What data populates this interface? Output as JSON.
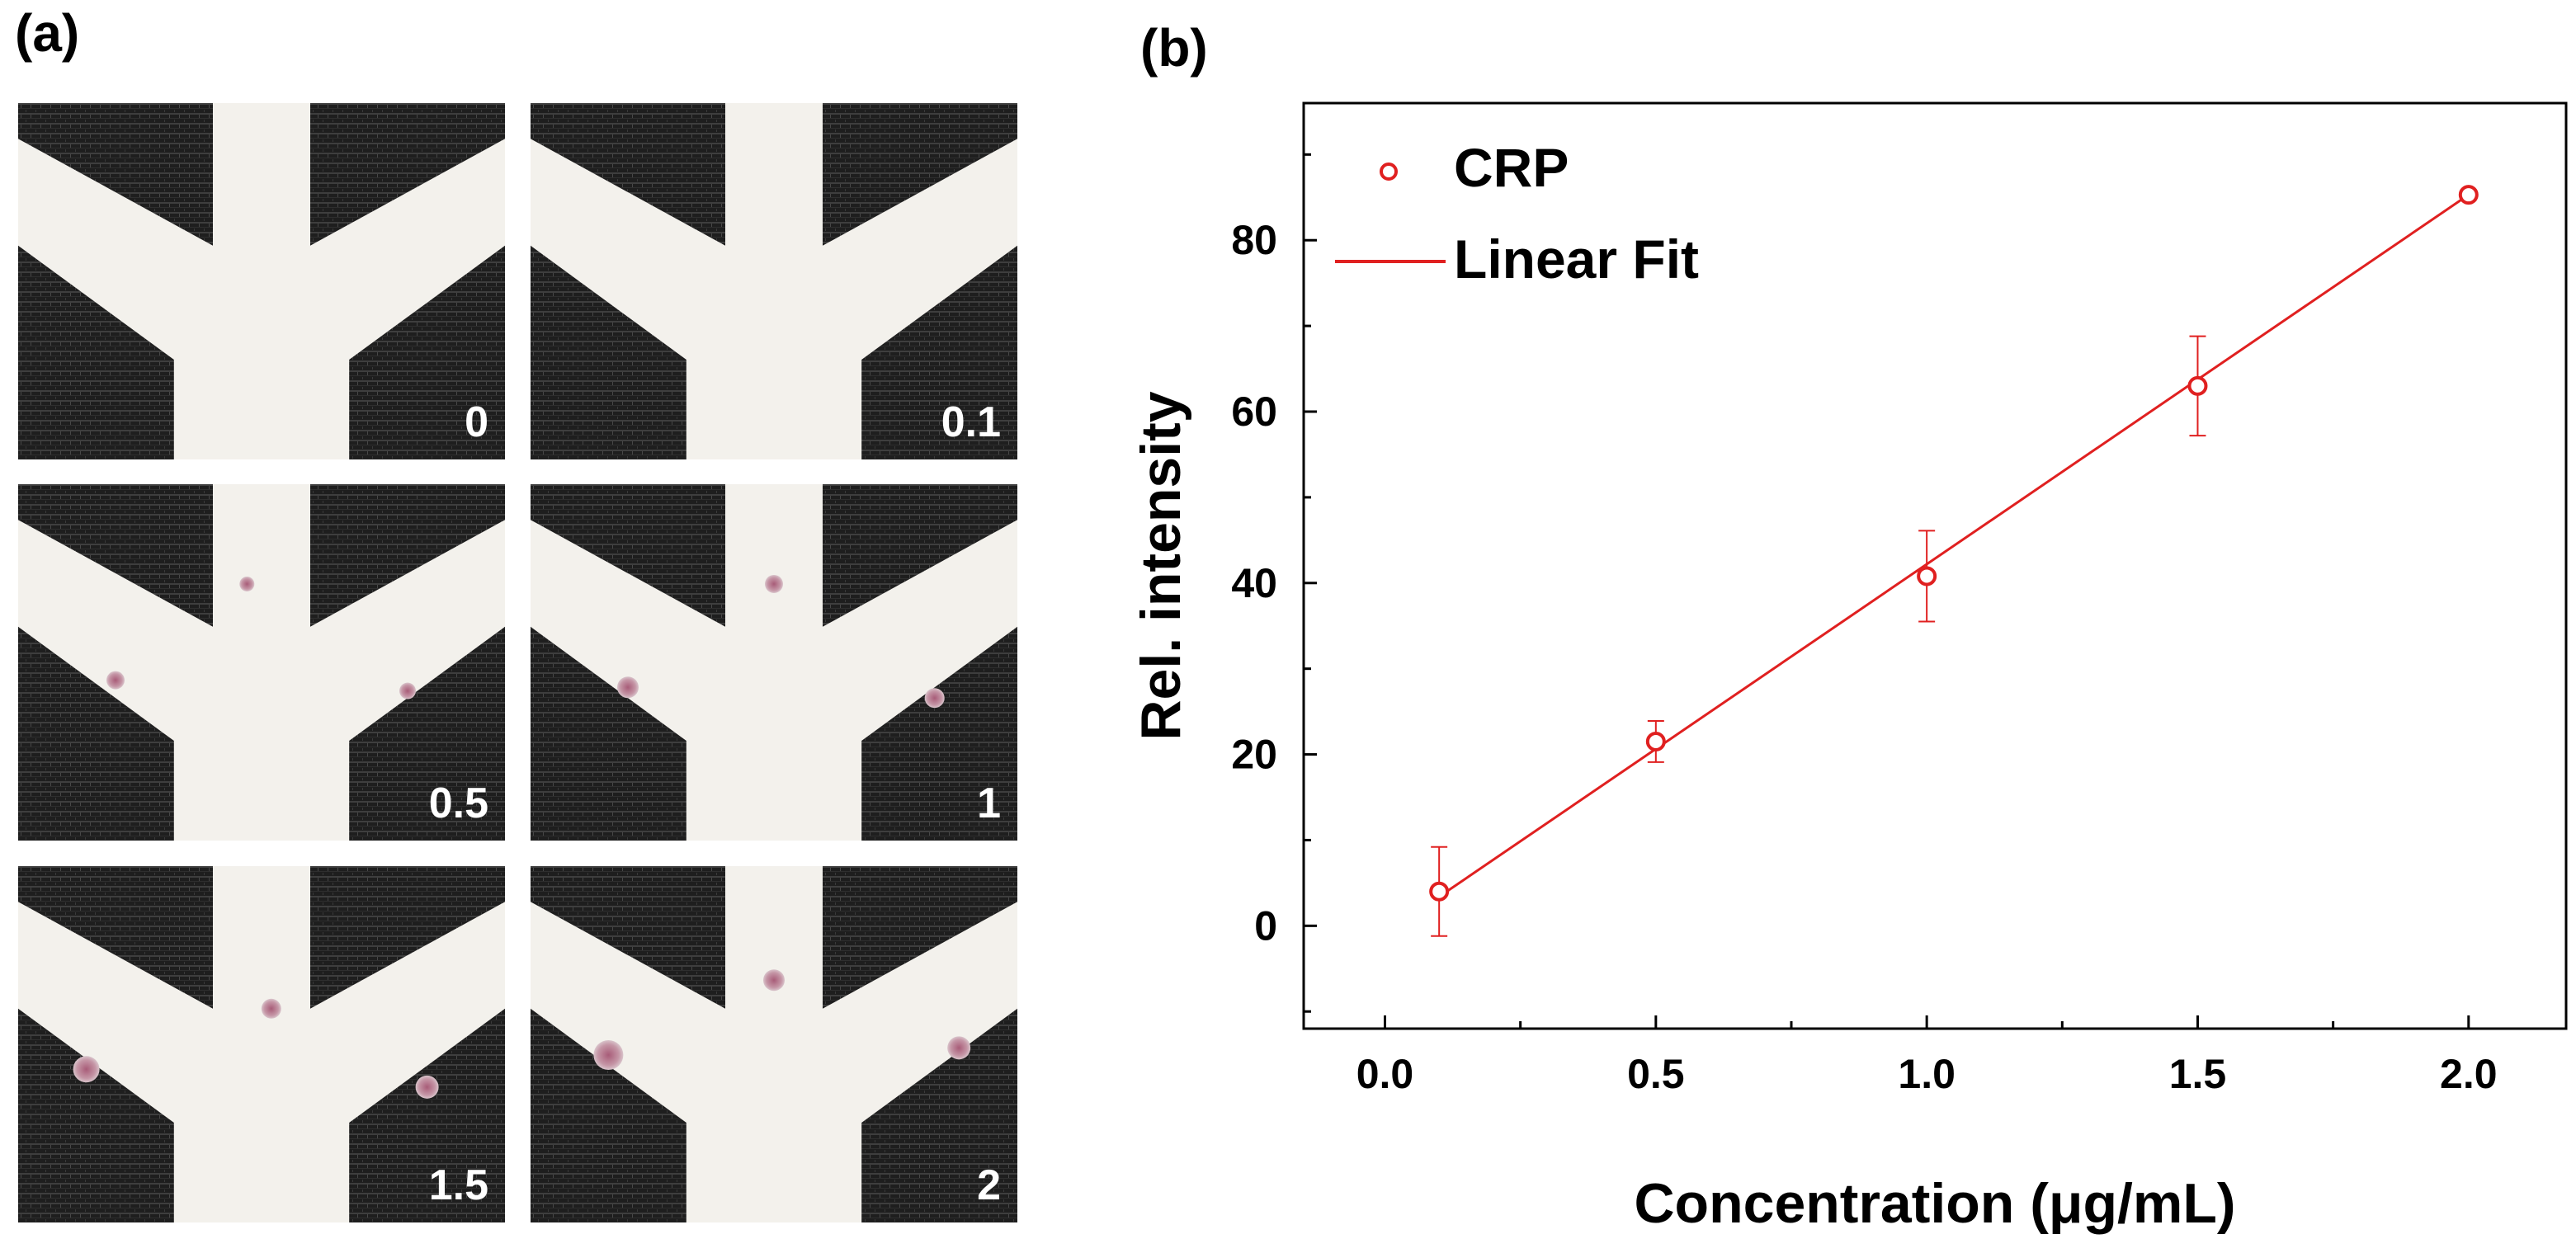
{
  "panel_a": {
    "label": "(a)",
    "photos": [
      {
        "label": "0"
      },
      {
        "label": "0.1"
      },
      {
        "label": "0.5"
      },
      {
        "label": "1"
      },
      {
        "label": "1.5"
      },
      {
        "label": "2"
      }
    ]
  },
  "panel_b": {
    "label": "(b)"
  },
  "colors": {
    "series": "#e02020",
    "axis": "#000000",
    "dark_paper": "#1f1f1f",
    "channel": "#f3f1ec",
    "spot": "#b27a8c"
  },
  "chart_data": {
    "type": "scatter",
    "title": "",
    "xlabel": "Concentration (μg/mL)",
    "ylabel": "Rel. intensity",
    "xlim": [
      -0.15,
      2.18
    ],
    "ylim": [
      -12,
      96
    ],
    "xticks": [
      0.0,
      0.5,
      1.0,
      1.5,
      2.0
    ],
    "xtick_labels": [
      "0.0",
      "0.5",
      "1.0",
      "1.5",
      "2.0"
    ],
    "yticks": [
      0,
      20,
      40,
      60,
      80
    ],
    "ytick_labels": [
      "0",
      "20",
      "40",
      "60",
      "80"
    ],
    "grid": false,
    "legend_position": "top-left",
    "series": [
      {
        "name": "CRP",
        "marker": "open-circle",
        "x": [
          0.1,
          0.5,
          1.0,
          1.5,
          2.0
        ],
        "y": [
          4,
          21.5,
          40.8,
          63,
          85.3
        ],
        "yerr": [
          5.2,
          2.4,
          5.3,
          5.8,
          0
        ]
      },
      {
        "name": "Linear Fit",
        "style": "line",
        "x": [
          0.1,
          2.0
        ],
        "y": [
          3.4,
          85.3
        ]
      }
    ]
  }
}
